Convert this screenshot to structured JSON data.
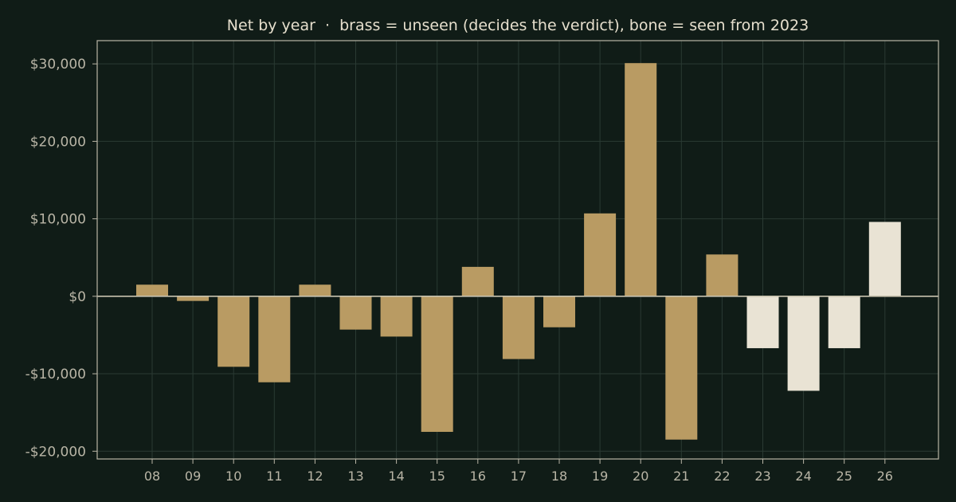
{
  "chart_data": {
    "type": "bar",
    "title": "Net by year  ·  brass = unseen (decides the verdict), bone = seen from 2023",
    "xlabel": "",
    "ylabel": "",
    "categories": [
      "08",
      "09",
      "10",
      "11",
      "12",
      "13",
      "14",
      "15",
      "16",
      "17",
      "18",
      "19",
      "20",
      "21",
      "22",
      "23",
      "24",
      "25",
      "26"
    ],
    "values": [
      1500,
      -600,
      -9100,
      -11100,
      1500,
      -4300,
      -5200,
      -17500,
      3800,
      -8100,
      -4000,
      10700,
      30100,
      -18500,
      5400,
      -6700,
      -12200,
      -6700,
      9600
    ],
    "groups": [
      "unseen",
      "unseen",
      "unseen",
      "unseen",
      "unseen",
      "unseen",
      "unseen",
      "unseen",
      "unseen",
      "unseen",
      "unseen",
      "unseen",
      "unseen",
      "unseen",
      "unseen",
      "seen",
      "seen",
      "seen",
      "seen"
    ],
    "colors": {
      "unseen": "#b99b63",
      "seen": "#e9e3d4"
    },
    "ylim": [
      -21000,
      33000
    ],
    "yticks": [
      -20000,
      -10000,
      0,
      10000,
      20000,
      30000
    ],
    "ytick_labels": [
      "-$20,000",
      "-$10,000",
      "$0",
      "$10,000",
      "$20,000",
      "$30,000"
    ],
    "grid": true,
    "legend": "none"
  }
}
